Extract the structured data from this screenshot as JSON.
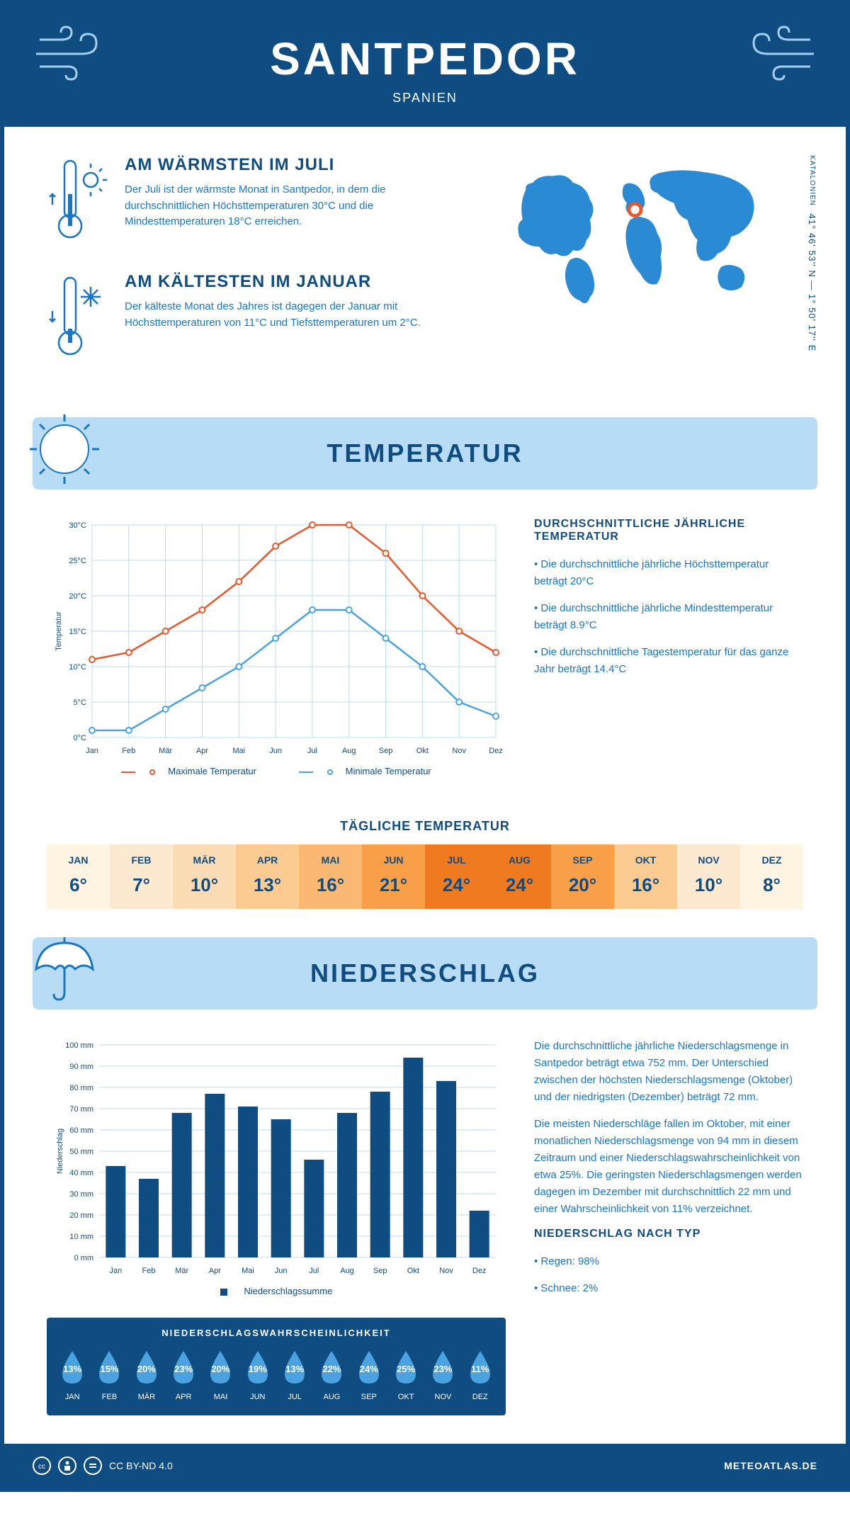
{
  "header": {
    "title": "SANTPEDOR",
    "subtitle": "SPANIEN"
  },
  "coords": {
    "region": "KATALONIEN",
    "value": "41° 46' 53'' N — 1° 50' 17'' E"
  },
  "warm": {
    "title": "AM WÄRMSTEN IM JULI",
    "text": "Der Juli ist der wärmste Monat in Santpedor, in dem die durchschnittlichen Höchsttemperaturen 30°C und die Mindesttemperaturen 18°C erreichen."
  },
  "cold": {
    "title": "AM KÄLTESTEN IM JANUAR",
    "text": "Der kälteste Monat des Jahres ist dagegen der Januar mit Höchsttemperaturen von 11°C und Tiefsttemperaturen um 2°C."
  },
  "temp_section": {
    "title": "TEMPERATUR",
    "info_title": "DURCHSCHNITTLICHE JÄHRLICHE TEMPERATUR",
    "info_1": "• Die durchschnittliche jährliche Höchsttemperatur beträgt 20°C",
    "info_2": "• Die durchschnittliche jährliche Mindesttemperatur beträgt 8.9°C",
    "info_3": "• Die durchschnittliche Tagestemperatur für das ganze Jahr beträgt 14.4°C",
    "daily_title": "TÄGLICHE TEMPERATUR",
    "legend_max": "Maximale Temperatur",
    "legend_min": "Minimale Temperatur"
  },
  "temp_chart": {
    "type": "line",
    "months": [
      "Jan",
      "Feb",
      "Mär",
      "Apr",
      "Mai",
      "Jun",
      "Jul",
      "Aug",
      "Sep",
      "Okt",
      "Nov",
      "Dez"
    ],
    "max_values": [
      11,
      12,
      15,
      18,
      22,
      27,
      30,
      30,
      26,
      20,
      15,
      12
    ],
    "min_values": [
      1,
      1,
      4,
      7,
      10,
      14,
      18,
      18,
      14,
      10,
      5,
      3
    ],
    "max_color": "#e8582c",
    "min_color": "#4aa3e0",
    "grid_color": "#b8dcf5",
    "axis_color": "#0f4c81",
    "ylim": [
      0,
      30
    ],
    "ytick_step": 5,
    "ylabel": "Temperatur",
    "marker_fill": "#ffffff",
    "marker_radius": 4,
    "line_width": 2.5,
    "label_fontsize": 11
  },
  "daily_temp": {
    "months": [
      "JAN",
      "FEB",
      "MÄR",
      "APR",
      "MAI",
      "JUN",
      "JUL",
      "AUG",
      "SEP",
      "OKT",
      "NOV",
      "DEZ"
    ],
    "values": [
      "6°",
      "7°",
      "10°",
      "13°",
      "16°",
      "21°",
      "24°",
      "24°",
      "20°",
      "16°",
      "10°",
      "8°"
    ],
    "colors": [
      "#fff3e2",
      "#fde9cf",
      "#fcdcb4",
      "#fbcb92",
      "#fab872",
      "#f89f47",
      "#f07a1f",
      "#f07a1f",
      "#f89f47",
      "#fbcb92",
      "#fde9cf",
      "#fff3e2"
    ]
  },
  "precip_section": {
    "title": "NIEDERSCHLAG",
    "para_1": "Die durchschnittliche jährliche Niederschlagsmenge in Santpedor beträgt etwa 752 mm. Der Unterschied zwischen der höchsten Niederschlagsmenge (Oktober) und der niedrigsten (Dezember) beträgt 72 mm.",
    "para_2": "Die meisten Niederschläge fallen im Oktober, mit einer monatlichen Niederschlagsmenge von 94 mm in diesem Zeitraum und einer Niederschlagswahrscheinlichkeit von etwa 25%. Die geringsten Niederschlagsmengen werden dagegen im Dezember mit durchschnittlich 22 mm und einer Wahrscheinlichkeit von 11% verzeichnet.",
    "type_title": "NIEDERSCHLAG NACH TYP",
    "type_1": "• Regen: 98%",
    "type_2": "• Schnee: 2%",
    "prob_title": "NIEDERSCHLAGSWAHRSCHEINLICHKEIT",
    "legend": "Niederschlagssumme"
  },
  "precip_chart": {
    "type": "bar",
    "months": [
      "Jan",
      "Feb",
      "Mär",
      "Apr",
      "Mai",
      "Jun",
      "Jul",
      "Aug",
      "Sep",
      "Okt",
      "Nov",
      "Dez"
    ],
    "values": [
      43,
      37,
      68,
      77,
      71,
      65,
      46,
      68,
      78,
      94,
      83,
      22
    ],
    "bar_color": "#0f4c81",
    "grid_color": "#b8dcf5",
    "axis_color": "#0f4c81",
    "ylim": [
      0,
      100
    ],
    "ytick_step": 10,
    "ylabel": "Niederschlag",
    "bar_width": 0.6,
    "label_fontsize": 11
  },
  "precip_prob": {
    "months": [
      "JAN",
      "FEB",
      "MÄR",
      "APR",
      "MAI",
      "JUN",
      "JUL",
      "AUG",
      "SEP",
      "OKT",
      "NOV",
      "DEZ"
    ],
    "values": [
      "13%",
      "15%",
      "20%",
      "23%",
      "20%",
      "19%",
      "13%",
      "22%",
      "24%",
      "25%",
      "23%",
      "11%"
    ],
    "drop_fill": "#4aa3e0"
  },
  "footer": {
    "license": "CC BY-ND 4.0",
    "site": "METEOATLAS.DE"
  }
}
